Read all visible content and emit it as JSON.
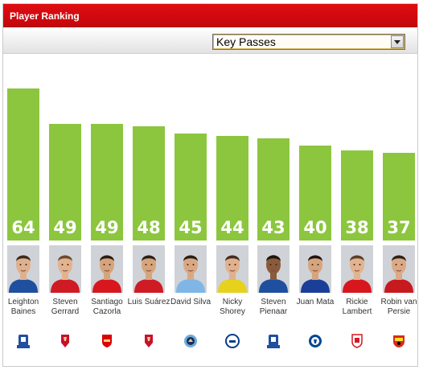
{
  "header": {
    "title": "Player Ranking"
  },
  "toolbar": {
    "metric_selected": "Key Passes"
  },
  "colors": {
    "header_red": "#d10a10",
    "bar_green": "#8cc63f"
  },
  "chart_data": {
    "type": "bar",
    "metric": "Key Passes",
    "ylim": [
      0,
      70
    ],
    "players": [
      {
        "name": "Leighton Baines",
        "value": 64,
        "club_icon": "everton-crest-icon",
        "kit": "#1f4f9f",
        "skin": "#e0b08d",
        "hair": "#3a2a1e"
      },
      {
        "name": "Steven Gerrard",
        "value": 49,
        "club_icon": "liverpool-crest-icon",
        "kit": "#cf1b24",
        "skin": "#e3b28f",
        "hair": "#6b4a2f"
      },
      {
        "name": "Santiago Cazorla",
        "value": 49,
        "club_icon": "arsenal-crest-icon",
        "kit": "#d8161e",
        "skin": "#d6a47c",
        "hair": "#2a1d15"
      },
      {
        "name": "Luis Suárez",
        "value": 48,
        "club_icon": "liverpool-crest-icon",
        "kit": "#cf1b24",
        "skin": "#d7a57c",
        "hair": "#2b1f16"
      },
      {
        "name": "David Silva",
        "value": 45,
        "club_icon": "manchester-city-crest-icon",
        "kit": "#7fb6e6",
        "skin": "#d9a883",
        "hair": "#2a1d15"
      },
      {
        "name": "Nicky Shorey",
        "value": 44,
        "club_icon": "reading-crest-icon",
        "kit": "#e6d21d",
        "skin": "#e1b08d",
        "hair": "#3f2c1f"
      },
      {
        "name": "Steven Pienaar",
        "value": 43,
        "club_icon": "everton-crest-icon",
        "kit": "#1f4f9f",
        "skin": "#8a5a3a",
        "hair": "#1e140e"
      },
      {
        "name": "Juan Mata",
        "value": 40,
        "club_icon": "chelsea-crest-icon",
        "kit": "#1b3f98",
        "skin": "#d7a57c",
        "hair": "#1f1510"
      },
      {
        "name": "Rickie Lambert",
        "value": 38,
        "club_icon": "southampton-crest-icon",
        "kit": "#d8161e",
        "skin": "#e3b28f",
        "hair": "#5a4028"
      },
      {
        "name": "Robin van Persie",
        "value": 37,
        "club_icon": "manchester-united-crest-icon",
        "kit": "#c71a1f",
        "skin": "#dba983",
        "hair": "#2e2118"
      }
    ]
  }
}
